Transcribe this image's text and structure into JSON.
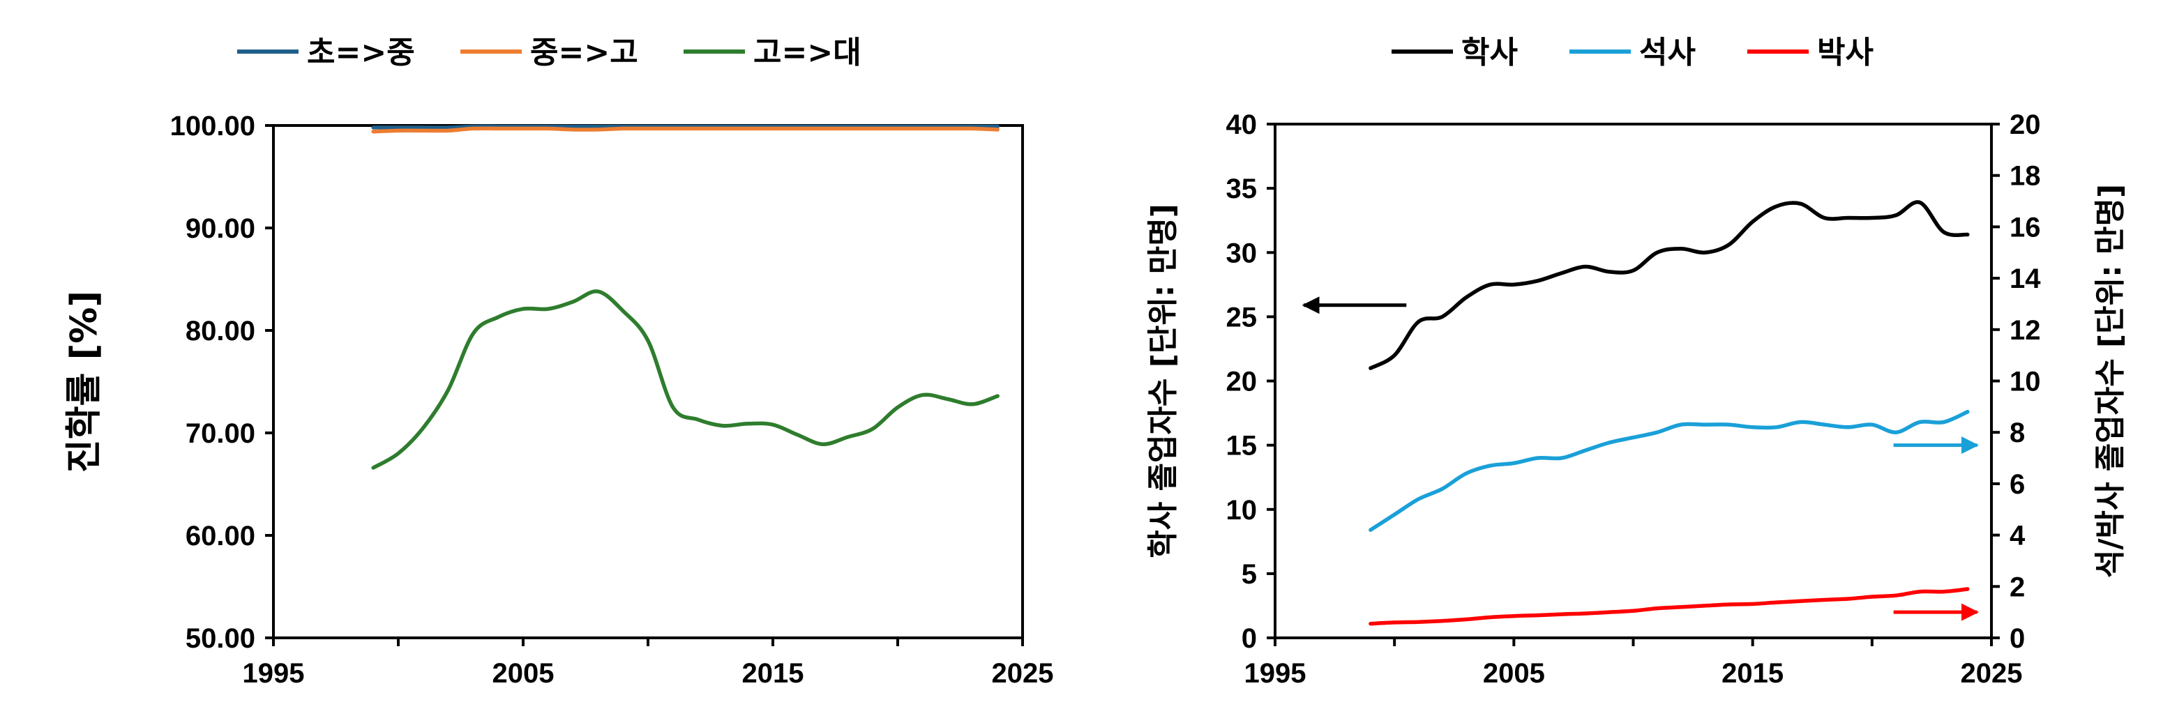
{
  "chart_data": [
    {
      "type": "line",
      "title": "",
      "xlabel": "",
      "ylabel": "진학률 [%]",
      "xlim": [
        1995,
        2025
      ],
      "ylim": [
        50,
        100
      ],
      "xticks": [
        1995,
        2005,
        2015,
        2025
      ],
      "yticks": [
        50,
        60,
        70,
        80,
        90,
        100
      ],
      "ytick_labels": [
        "50.00",
        "60.00",
        "70.00",
        "80.00",
        "90.00",
        "100.00"
      ],
      "grid": false,
      "legend_position": "top",
      "series": [
        {
          "name": "초=>중",
          "color": "#1f5f8b",
          "x": [
            1999,
            2000,
            2001,
            2002,
            2003,
            2004,
            2005,
            2006,
            2007,
            2008,
            2009,
            2010,
            2011,
            2012,
            2013,
            2014,
            2015,
            2016,
            2017,
            2018,
            2019,
            2020,
            2021,
            2022,
            2023,
            2024
          ],
          "y": [
            99.8,
            99.8,
            99.8,
            99.8,
            99.9,
            99.9,
            99.9,
            99.9,
            99.9,
            99.9,
            99.9,
            99.9,
            99.9,
            99.9,
            99.9,
            99.9,
            99.9,
            99.9,
            99.9,
            99.9,
            99.9,
            99.9,
            99.9,
            99.9,
            99.9,
            99.9
          ]
        },
        {
          "name": "중=>고",
          "color": "#ed7d31",
          "x": [
            1999,
            2000,
            2001,
            2002,
            2003,
            2004,
            2005,
            2006,
            2007,
            2008,
            2009,
            2010,
            2011,
            2012,
            2013,
            2014,
            2015,
            2016,
            2017,
            2018,
            2019,
            2020,
            2021,
            2022,
            2023,
            2024
          ],
          "y": [
            99.4,
            99.5,
            99.5,
            99.5,
            99.7,
            99.7,
            99.7,
            99.7,
            99.6,
            99.6,
            99.7,
            99.7,
            99.7,
            99.7,
            99.7,
            99.7,
            99.7,
            99.7,
            99.7,
            99.7,
            99.7,
            99.7,
            99.7,
            99.7,
            99.7,
            99.6
          ]
        },
        {
          "name": "고=>대",
          "color": "#2e7d2e",
          "x": [
            1999,
            2000,
            2001,
            2002,
            2003,
            2004,
            2005,
            2006,
            2007,
            2008,
            2009,
            2010,
            2011,
            2012,
            2013,
            2014,
            2015,
            2016,
            2017,
            2018,
            2019,
            2020,
            2021,
            2022,
            2023,
            2024
          ],
          "y": [
            66.6,
            68.0,
            70.5,
            74.2,
            79.7,
            81.3,
            82.1,
            82.1,
            82.8,
            83.8,
            81.9,
            79.0,
            72.5,
            71.3,
            70.7,
            70.9,
            70.8,
            69.8,
            68.9,
            69.6,
            70.4,
            72.5,
            73.7,
            73.3,
            72.8,
            73.6
          ]
        }
      ]
    },
    {
      "type": "line",
      "title": "",
      "xlabel": "",
      "ylabel": "학사 졸업자수 [단위: 만명]",
      "y2label": "석/박사 졸업자수 [단위: 만명]",
      "xlim": [
        1995,
        2025
      ],
      "ylim": [
        0,
        40
      ],
      "y2lim": [
        0,
        20
      ],
      "xticks": [
        1995,
        2005,
        2015,
        2025
      ],
      "yticks": [
        0,
        5,
        10,
        15,
        20,
        25,
        30,
        35,
        40
      ],
      "y2ticks": [
        0,
        2,
        4,
        6,
        8,
        10,
        12,
        14,
        16,
        18,
        20
      ],
      "grid": false,
      "legend_position": "top",
      "series": [
        {
          "name": "학사",
          "color": "#000000",
          "axis": "left",
          "x": [
            1999,
            2000,
            2001,
            2002,
            2003,
            2004,
            2005,
            2006,
            2007,
            2008,
            2009,
            2010,
            2011,
            2012,
            2013,
            2014,
            2015,
            2016,
            2017,
            2018,
            2019,
            2020,
            2021,
            2022,
            2023,
            2024
          ],
          "y": [
            21.0,
            22.0,
            24.6,
            25.0,
            26.5,
            27.5,
            27.5,
            27.8,
            28.4,
            28.9,
            28.5,
            28.6,
            30.0,
            30.3,
            30.0,
            30.6,
            32.4,
            33.6,
            33.8,
            32.7,
            32.7,
            32.7,
            32.9,
            33.9,
            31.6,
            31.4
          ]
        },
        {
          "name": "석사",
          "color": "#1aa0d8",
          "axis": "right",
          "x": [
            1999,
            2000,
            2001,
            2002,
            2003,
            2004,
            2005,
            2006,
            2007,
            2008,
            2009,
            2010,
            2011,
            2012,
            2013,
            2014,
            2015,
            2016,
            2017,
            2018,
            2019,
            2020,
            2021,
            2022,
            2023,
            2024
          ],
          "y": [
            4.2,
            4.8,
            5.4,
            5.8,
            6.4,
            6.7,
            6.8,
            7.0,
            7.0,
            7.3,
            7.6,
            7.8,
            8.0,
            8.3,
            8.3,
            8.3,
            8.2,
            8.2,
            8.4,
            8.3,
            8.2,
            8.3,
            8.0,
            8.4,
            8.4,
            8.8
          ]
        },
        {
          "name": "박사",
          "color": "#ff0000",
          "axis": "right",
          "x": [
            1999,
            2000,
            2001,
            2002,
            2003,
            2004,
            2005,
            2006,
            2007,
            2008,
            2009,
            2010,
            2011,
            2012,
            2013,
            2014,
            2015,
            2016,
            2017,
            2018,
            2019,
            2020,
            2021,
            2022,
            2023,
            2024
          ],
          "y": [
            0.55,
            0.6,
            0.62,
            0.66,
            0.72,
            0.8,
            0.85,
            0.88,
            0.92,
            0.95,
            1.0,
            1.05,
            1.15,
            1.2,
            1.25,
            1.3,
            1.32,
            1.38,
            1.43,
            1.48,
            1.52,
            1.6,
            1.65,
            1.8,
            1.8,
            1.9
          ]
        }
      ],
      "annotations": [
        {
          "type": "arrow",
          "direction": "left",
          "color": "#000000",
          "series": "학사"
        },
        {
          "type": "arrow",
          "direction": "right",
          "color": "#1aa0d8",
          "series": "석사"
        },
        {
          "type": "arrow",
          "direction": "right",
          "color": "#ff0000",
          "series": "박사"
        }
      ]
    }
  ]
}
